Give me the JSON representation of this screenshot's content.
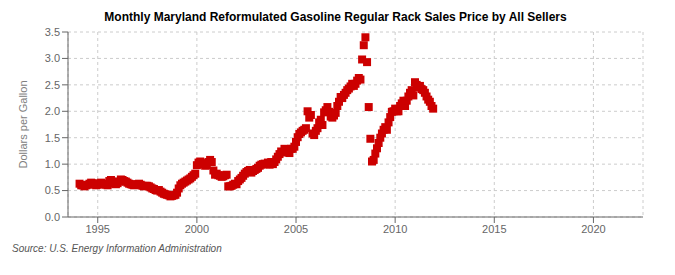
{
  "chart_data": {
    "type": "scatter",
    "title": "Monthly Maryland Reformulated Gasoline Regular Rack Sales Price by All Sellers",
    "ylabel": "Dollars per Gallon",
    "annotations": [
      "Source: U.S. Energy Information Administration"
    ],
    "xlim": [
      1993.5,
      2022.5
    ],
    "ylim": [
      0.0,
      3.5
    ],
    "xticks": [
      1995,
      2000,
      2005,
      2010,
      2015,
      2020
    ],
    "yticks": [
      {
        "value": 0.0,
        "label": "0.0"
      },
      0.5,
      {
        "value": 1.0,
        "label": "1.0"
      },
      1.5,
      {
        "value": 2.0,
        "label": "2.0"
      },
      2.5,
      {
        "value": 3.0,
        "label": "3.0"
      },
      3.5
    ],
    "color": "#cc0000",
    "marker": "square",
    "grid": true,
    "x": [
      1994.083,
      1994.167,
      1994.25,
      1994.333,
      1994.417,
      1994.5,
      1994.583,
      1994.667,
      1994.75,
      1994.833,
      1994.917,
      1995.0,
      1995.083,
      1995.167,
      1995.25,
      1995.333,
      1995.417,
      1995.5,
      1995.583,
      1995.667,
      1995.75,
      1995.833,
      1995.917,
      1996.0,
      1996.083,
      1996.167,
      1996.25,
      1996.333,
      1996.417,
      1996.5,
      1996.583,
      1996.667,
      1996.75,
      1996.833,
      1996.917,
      1997.0,
      1997.083,
      1997.167,
      1997.25,
      1997.333,
      1997.417,
      1997.5,
      1997.583,
      1997.667,
      1997.75,
      1997.833,
      1997.917,
      1998.0,
      1998.083,
      1998.167,
      1998.25,
      1998.333,
      1998.417,
      1998.5,
      1998.583,
      1998.667,
      1998.75,
      1998.833,
      1998.917,
      1999.0,
      1999.083,
      1999.167,
      1999.25,
      1999.333,
      1999.417,
      1999.5,
      1999.583,
      1999.667,
      1999.75,
      1999.833,
      1999.917,
      2000.0,
      2000.083,
      2000.167,
      2000.25,
      2000.333,
      2000.417,
      2000.5,
      2000.583,
      2000.667,
      2000.75,
      2000.833,
      2000.917,
      2001.0,
      2001.083,
      2001.167,
      2001.25,
      2001.333,
      2001.417,
      2001.5,
      2001.583,
      2001.667,
      2001.75,
      2001.833,
      2001.917,
      2002.0,
      2002.083,
      2002.167,
      2002.25,
      2002.333,
      2002.417,
      2002.5,
      2002.583,
      2002.667,
      2002.75,
      2002.833,
      2002.917,
      2003.0,
      2003.083,
      2003.167,
      2003.25,
      2003.333,
      2003.417,
      2003.5,
      2003.583,
      2003.667,
      2003.75,
      2003.833,
      2003.917,
      2004.0,
      2004.083,
      2004.167,
      2004.25,
      2004.333,
      2004.417,
      2004.5,
      2004.583,
      2004.667,
      2004.75,
      2004.833,
      2004.917,
      2005.0,
      2005.083,
      2005.167,
      2005.25,
      2005.333,
      2005.417,
      2005.5,
      2005.583,
      2005.667,
      2005.75,
      2005.833,
      2005.917,
      2006.0,
      2006.083,
      2006.167,
      2006.25,
      2006.333,
      2006.417,
      2006.5,
      2006.583,
      2006.667,
      2006.75,
      2006.833,
      2006.917,
      2007.0,
      2007.083,
      2007.167,
      2007.25,
      2007.333,
      2007.417,
      2007.5,
      2007.583,
      2007.667,
      2007.75,
      2007.833,
      2007.917,
      2008.0,
      2008.083,
      2008.167,
      2008.25,
      2008.333,
      2008.417,
      2008.5,
      2008.583,
      2008.667,
      2008.75,
      2008.833,
      2008.917,
      2009.0,
      2009.083,
      2009.167,
      2009.25,
      2009.333,
      2009.417,
      2009.5,
      2009.583,
      2009.667,
      2009.75,
      2009.833,
      2009.917,
      2010.0,
      2010.083,
      2010.167,
      2010.25,
      2010.333,
      2010.417,
      2010.5,
      2010.583,
      2010.667,
      2010.75,
      2010.833,
      2010.917,
      2011.0,
      2011.083,
      2011.167,
      2011.25,
      2011.333,
      2011.417,
      2011.5,
      2011.583,
      2011.667,
      2011.75,
      2011.833,
      2011.917
    ],
    "values": [
      0.63,
      0.6,
      0.6,
      0.58,
      0.6,
      0.61,
      0.63,
      0.65,
      0.64,
      0.62,
      0.6,
      0.61,
      0.63,
      0.65,
      0.63,
      0.62,
      0.61,
      0.6,
      0.68,
      0.7,
      0.67,
      0.63,
      0.62,
      0.64,
      0.67,
      0.71,
      0.7,
      0.68,
      0.67,
      0.65,
      0.63,
      0.62,
      0.61,
      0.6,
      0.61,
      0.62,
      0.63,
      0.61,
      0.59,
      0.58,
      0.59,
      0.59,
      0.58,
      0.56,
      0.54,
      0.53,
      0.51,
      0.5,
      0.51,
      0.48,
      0.46,
      0.44,
      0.43,
      0.42,
      0.41,
      0.39,
      0.4,
      0.41,
      0.42,
      0.46,
      0.54,
      0.6,
      0.63,
      0.65,
      0.67,
      0.69,
      0.71,
      0.73,
      0.76,
      0.79,
      0.82,
      0.98,
      1.03,
      1.05,
      1.02,
      1.0,
      0.97,
      0.98,
      1.04,
      1.08,
      1.04,
      0.88,
      0.8,
      0.82,
      0.79,
      0.78,
      0.76,
      0.77,
      0.79,
      0.8,
      0.58,
      0.58,
      0.59,
      0.61,
      0.63,
      0.62,
      0.68,
      0.71,
      0.74,
      0.78,
      0.82,
      0.85,
      0.87,
      0.89,
      0.84,
      0.87,
      0.89,
      0.91,
      0.93,
      0.97,
      0.99,
      1.0,
      1.01,
      1.0,
      1.03,
      0.99,
      1.04,
      1.0,
      1.04,
      1.09,
      1.14,
      1.19,
      1.24,
      1.22,
      1.29,
      1.28,
      1.25,
      1.21,
      1.29,
      1.29,
      1.33,
      1.42,
      1.51,
      1.57,
      1.6,
      1.63,
      1.65,
      1.68,
      2.0,
      1.88,
      1.93,
      1.58,
      1.55,
      1.63,
      1.68,
      1.79,
      1.84,
      1.74,
      1.98,
      2.02,
      2.08,
      1.99,
      1.9,
      1.88,
      1.92,
      1.97,
      2.1,
      2.18,
      2.27,
      2.25,
      2.31,
      2.35,
      2.4,
      2.43,
      2.47,
      2.52,
      2.48,
      2.52,
      2.58,
      2.63,
      2.6,
      2.98,
      3.25,
      3.4,
      2.93,
      2.08,
      1.48,
      1.05,
      1.08,
      1.2,
      1.3,
      1.4,
      1.5,
      1.58,
      1.65,
      1.7,
      1.65,
      1.79,
      1.89,
      1.99,
      2.0,
      2.05,
      2.0,
      2.0,
      2.1,
      2.15,
      2.2,
      2.1,
      2.2,
      2.28,
      2.35,
      2.4,
      2.3,
      2.55,
      2.5,
      2.45,
      2.48,
      2.42,
      2.4,
      2.35,
      2.28,
      2.22,
      2.18,
      2.1,
      2.05
    ]
  }
}
